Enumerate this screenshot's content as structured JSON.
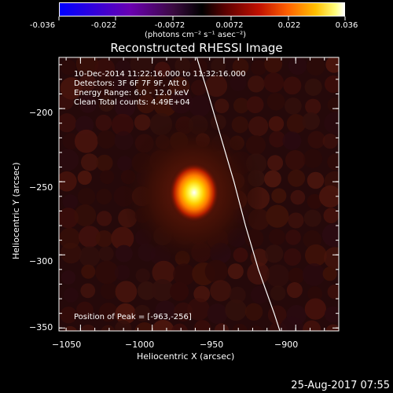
{
  "colorbar": {
    "ticks": [
      "-0.036",
      "-0.022",
      "-0.0072",
      "0.0072",
      "0.022",
      "0.036"
    ],
    "units": "(photons cm⁻² s⁻¹ asec⁻²)"
  },
  "title": "Reconstructed RHESSI Image",
  "info": {
    "time": "10-Dec-2014 11:22:16.000 to 11:32:16.000",
    "detectors": "Detectors: 3F 6F 7F 9F, Att 0",
    "energy": "Energy Range: 6.0 - 12.0 keV",
    "clean": "Clean    Total counts: 4.49E+04",
    "peak": "Position of Peak = [-963,-256]"
  },
  "footer": "25-Aug-2017 07:55",
  "chart_data": {
    "type": "heatmap",
    "title": "Reconstructed RHESSI Image",
    "xlabel": "Heliocentric X (arcsec)",
    "ylabel": "Heliocentric Y (arcsec)",
    "xlim": [
      -1065,
      -870
    ],
    "ylim": [
      -352,
      -165
    ],
    "x_ticks": [
      -1050,
      -1000,
      -950,
      -900
    ],
    "x_tick_labels": [
      "−1050",
      "−1000",
      "−950",
      "−900"
    ],
    "y_ticks": [
      -200,
      -250,
      -300,
      -350
    ],
    "y_tick_labels": [
      "−200",
      "−250",
      "−300",
      "−350"
    ],
    "colorbar_range": [
      -0.036,
      0.036
    ],
    "peak": {
      "x": -963,
      "y": -256,
      "value": 0.036
    },
    "limb": [
      [
        -969,
        -165
      ],
      [
        -961,
        -190
      ],
      [
        -952,
        -220
      ],
      [
        -943,
        -250
      ],
      [
        -935,
        -280
      ],
      [
        -926,
        -310
      ],
      [
        -915,
        -340
      ],
      [
        -911,
        -352
      ]
    ]
  }
}
